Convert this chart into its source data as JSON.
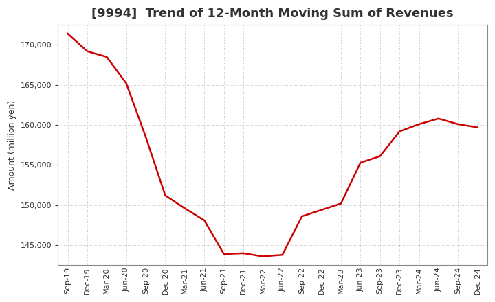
{
  "title": "[9994]  Trend of 12-Month Moving Sum of Revenues",
  "ylabel": "Amount (million yen)",
  "line_color": "#cc0000",
  "background_color": "#ffffff",
  "plot_bg_color": "#ffffff",
  "grid_color": "#999999",
  "x_labels": [
    "Sep-19",
    "Dec-19",
    "Mar-20",
    "Jun-20",
    "Sep-20",
    "Dec-20",
    "Mar-21",
    "Jun-21",
    "Sep-21",
    "Dec-21",
    "Mar-22",
    "Jun-22",
    "Sep-22",
    "Dec-22",
    "Mar-23",
    "Jun-23",
    "Sep-23",
    "Dec-23",
    "Mar-24",
    "Jun-24",
    "Sep-24",
    "Dec-24"
  ],
  "y_values": [
    171400,
    169200,
    168500,
    165200,
    158500,
    151200,
    149600,
    148100,
    143900,
    144000,
    143600,
    143800,
    148600,
    149400,
    150200,
    155300,
    156100,
    159200,
    160100,
    160800,
    160100,
    159700
  ],
  "ylim_min": 142500,
  "ylim_max": 172500,
  "yticks": [
    145000,
    150000,
    155000,
    160000,
    165000,
    170000
  ],
  "title_fontsize": 13,
  "title_color": "#333333",
  "ylabel_fontsize": 9,
  "tick_fontsize": 8,
  "line_width": 1.8
}
